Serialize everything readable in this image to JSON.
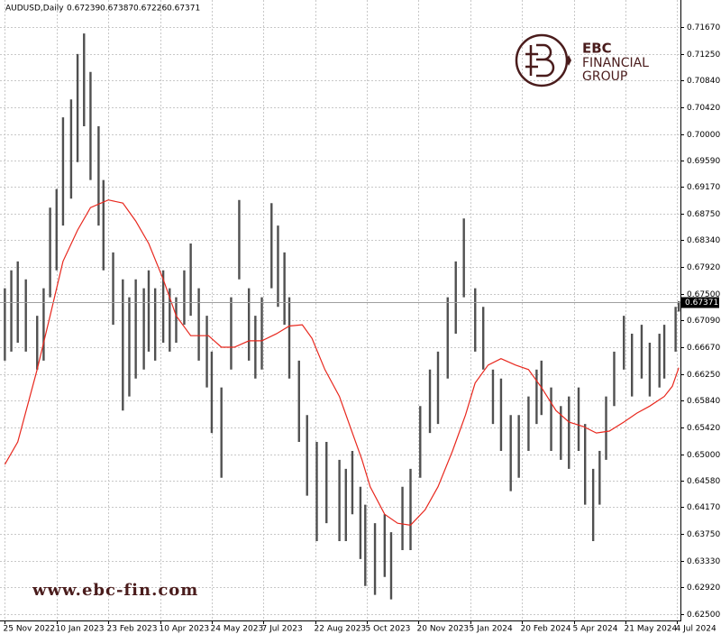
{
  "chart_data": {
    "type": "range",
    "title": "AUDUSD,Daily",
    "title_values": [
      0.67239,
      0.67387,
      0.67226,
      0.67371
    ],
    "color": "#505050",
    "x": [
      0,
      4,
      8,
      13,
      20,
      24,
      28,
      32,
      36,
      41,
      45,
      49,
      53,
      58,
      61,
      67,
      73,
      77,
      81,
      86,
      89,
      93,
      98,
      102,
      106,
      111,
      115,
      120,
      125,
      128,
      134,
      140,
      145,
      151,
      155,
      159,
      165,
      169,
      173,
      176,
      182,
      187,
      193,
      199,
      207,
      211,
      215,
      220,
      223,
      229,
      235,
      239,
      246,
      251,
      257,
      263,
      268,
      274,
      279,
      284,
      291,
      296,
      302,
      307,
      313,
      318,
      324,
      329,
      332,
      338,
      344,
      349,
      355,
      359,
      364,
      368,
      372,
      377,
      383,
      388,
      394,
      399,
      405,
      408,
      415,
      417
    ],
    "high": [
      0.6759,
      0.6787,
      0.6801,
      0.6773,
      0.6716,
      0.6759,
      0.6885,
      0.6914,
      0.7026,
      0.7054,
      0.7125,
      0.7157,
      0.7097,
      0.7012,
      0.6928,
      0.6815,
      0.6773,
      0.6745,
      0.6773,
      0.6759,
      0.6787,
      0.6759,
      0.6787,
      0.6759,
      0.6745,
      0.6787,
      0.6829,
      0.6759,
      0.6716,
      0.666,
      0.6604,
      0.6745,
      0.6897,
      0.6759,
      0.6716,
      0.6745,
      0.6892,
      0.6857,
      0.6815,
      0.6745,
      0.6646,
      0.6561,
      0.6519,
      0.6519,
      0.6491,
      0.6477,
      0.6505,
      0.6449,
      0.6421,
      0.6392,
      0.6406,
      0.6378,
      0.6449,
      0.6477,
      0.6575,
      0.6632,
      0.666,
      0.6745,
      0.6801,
      0.6868,
      0.6759,
      0.673,
      0.6632,
      0.6618,
      0.6561,
      0.6561,
      0.659,
      0.6632,
      0.6646,
      0.6604,
      0.6575,
      0.659,
      0.6604,
      0.6547,
      0.6477,
      0.6505,
      0.659,
      0.666,
      0.6716,
      0.6688,
      0.6702,
      0.6674,
      0.6688,
      0.6702,
      0.673,
      0.67387
    ],
    "low": [
      0.6646,
      0.666,
      0.6674,
      0.666,
      0.6632,
      0.6646,
      0.6745,
      0.6787,
      0.6857,
      0.6899,
      0.6956,
      0.7012,
      0.6928,
      0.6857,
      0.6787,
      0.6702,
      0.6568,
      0.659,
      0.6618,
      0.6632,
      0.666,
      0.6646,
      0.6674,
      0.666,
      0.6674,
      0.6702,
      0.6716,
      0.6646,
      0.6604,
      0.6533,
      0.6463,
      0.6632,
      0.6773,
      0.6646,
      0.6618,
      0.6632,
      0.6759,
      0.673,
      0.6702,
      0.6618,
      0.6519,
      0.6435,
      0.6364,
      0.6392,
      0.6364,
      0.6364,
      0.6406,
      0.6336,
      0.6294,
      0.628,
      0.6308,
      0.6273,
      0.635,
      0.635,
      0.6463,
      0.6533,
      0.6547,
      0.6618,
      0.6688,
      0.6745,
      0.666,
      0.6632,
      0.6547,
      0.6505,
      0.6442,
      0.6463,
      0.6505,
      0.6547,
      0.6561,
      0.6505,
      0.6491,
      0.6477,
      0.6505,
      0.6421,
      0.6364,
      0.6421,
      0.6491,
      0.6575,
      0.6632,
      0.659,
      0.6618,
      0.659,
      0.6604,
      0.6618,
      0.666,
      0.67226
    ],
    "overlay": {
      "type": "line",
      "color": "#e8281e",
      "x": [
        0,
        8,
        20,
        28,
        36,
        45,
        53,
        64,
        73,
        81,
        89,
        98,
        106,
        115,
        126,
        134,
        142,
        151,
        159,
        168,
        176,
        184,
        190,
        198,
        207,
        215,
        221,
        226,
        235,
        243,
        251,
        260,
        268,
        277,
        285,
        291,
        299,
        307,
        316,
        324,
        332,
        341,
        349,
        358,
        366,
        374,
        383,
        391,
        399,
        408,
        413,
        417
      ],
      "values": [
        0.6484,
        0.6519,
        0.6632,
        0.6716,
        0.6801,
        0.685,
        0.6885,
        0.6897,
        0.6892,
        0.6864,
        0.6829,
        0.6773,
        0.6716,
        0.6685,
        0.6685,
        0.6667,
        0.6667,
        0.6677,
        0.6677,
        0.6688,
        0.67,
        0.6702,
        0.6681,
        0.6632,
        0.659,
        0.6533,
        0.6491,
        0.6449,
        0.6406,
        0.6392,
        0.6389,
        0.6413,
        0.6449,
        0.6505,
        0.6561,
        0.6611,
        0.6639,
        0.6649,
        0.6639,
        0.6632,
        0.6604,
        0.6568,
        0.655,
        0.6543,
        0.6533,
        0.6536,
        0.655,
        0.6564,
        0.6575,
        0.659,
        0.6606,
        0.6635
      ]
    },
    "current": {
      "value": 0.67371,
      "label": "0.67371"
    },
    "xlim": [
      -3,
      418
    ],
    "ylim": [
      0.62401,
      0.72093
    ],
    "xticks": [
      {
        "value": 0,
        "label": "25 Nov 2022"
      },
      {
        "value": 32,
        "label": "10 Jan 2023"
      },
      {
        "value": 64,
        "label": "23 Feb 2023"
      },
      {
        "value": 96,
        "label": "10 Apr 2023"
      },
      {
        "value": 128,
        "label": "24 May 2023"
      },
      {
        "value": 160,
        "label": "7 Jul 2023"
      },
      {
        "value": 192,
        "label": "22 Aug 2023"
      },
      {
        "value": 224,
        "label": "5 Oct 2023"
      },
      {
        "value": 256,
        "label": "20 Nov 2023"
      },
      {
        "value": 288,
        "label": "5 Jan 2024"
      },
      {
        "value": 320,
        "label": "20 Feb 2024"
      },
      {
        "value": 352,
        "label": "5 Apr 2024"
      },
      {
        "value": 384,
        "label": "21 May 2024"
      },
      {
        "value": 416,
        "label": "4 Jul 2024"
      }
    ],
    "yticks": [
      {
        "value": 0.7167,
        "label": "0.71670"
      },
      {
        "value": 0.7125,
        "label": "0.71250"
      },
      {
        "value": 0.7084,
        "label": "0.70840"
      },
      {
        "value": 0.7042,
        "label": "0.70420"
      },
      {
        "value": 0.7,
        "label": "0.70000"
      },
      {
        "value": 0.6959,
        "label": "0.69590"
      },
      {
        "value": 0.6917,
        "label": "0.69170"
      },
      {
        "value": 0.6875,
        "label": "0.68750"
      },
      {
        "value": 0.6834,
        "label": "0.68340"
      },
      {
        "value": 0.6792,
        "label": "0.67920"
      },
      {
        "value": 0.675,
        "label": "0.67500"
      },
      {
        "value": 0.6709,
        "label": "0.67090"
      },
      {
        "value": 0.6667,
        "label": "0.66670"
      },
      {
        "value": 0.6625,
        "label": "0.66250"
      },
      {
        "value": 0.6584,
        "label": "0.65840"
      },
      {
        "value": 0.6542,
        "label": "0.65420"
      },
      {
        "value": 0.65,
        "label": "0.65000"
      },
      {
        "value": 0.6458,
        "label": "0.64580"
      },
      {
        "value": 0.6417,
        "label": "0.64170"
      },
      {
        "value": 0.6375,
        "label": "0.63750"
      },
      {
        "value": 0.6333,
        "label": "0.63330"
      },
      {
        "value": 0.6292,
        "label": "0.62920"
      },
      {
        "value": 0.625,
        "label": "0.62500"
      }
    ],
    "grid": true
  },
  "branding": {
    "name": "EBC",
    "line1": "FINANCIAL",
    "line2": "GROUP",
    "website": "www.ebc-fin.com"
  }
}
